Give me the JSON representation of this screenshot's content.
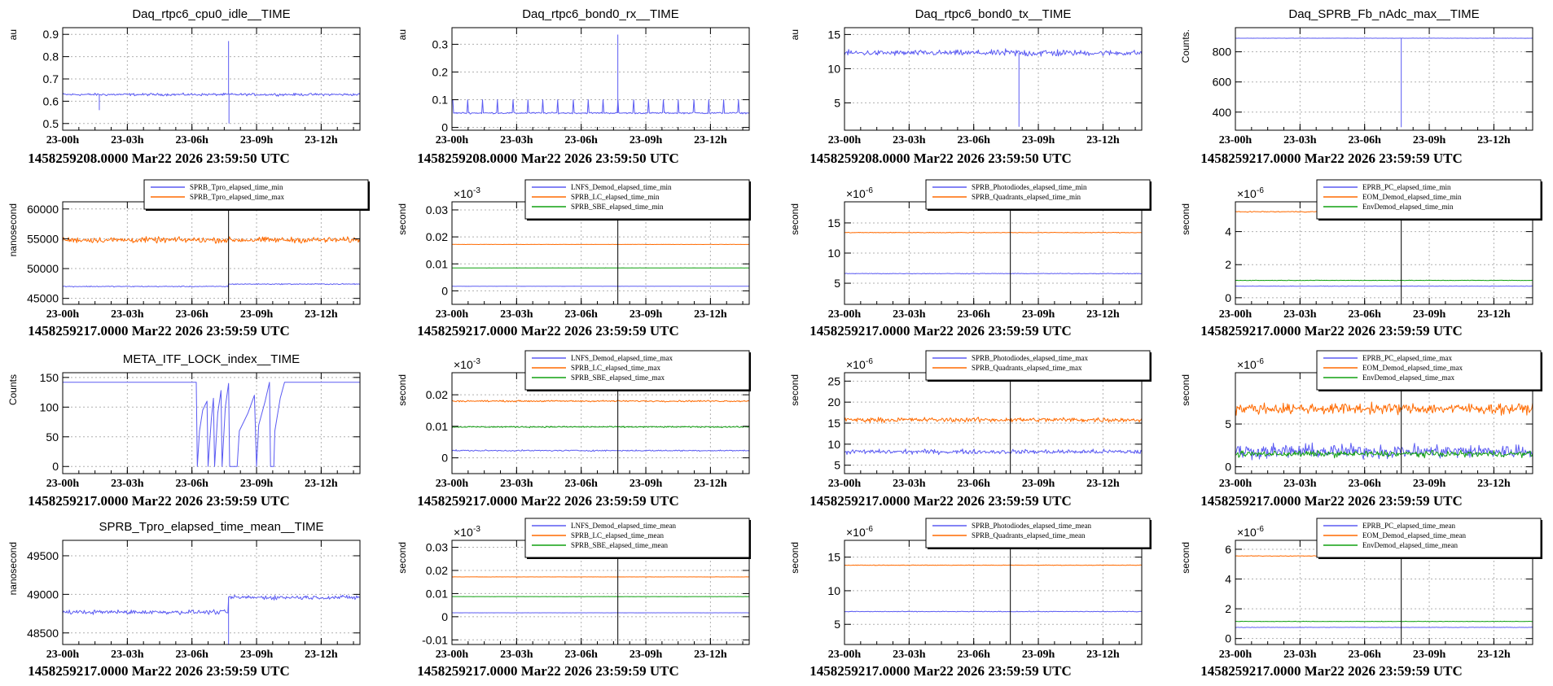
{
  "colors": {
    "blue": "#5b5bf2",
    "orange": "#ff6a00",
    "green": "#11a011",
    "black": "#000000",
    "grid": "#b0b0b0",
    "marker": "#000000"
  },
  "xticks": [
    "23-00h",
    "23-03h",
    "23-06h",
    "23-09h",
    "23-12h"
  ],
  "x_range_hours": [
    0,
    13.8
  ],
  "event_hour": 7.7,
  "chart_data": [
    {
      "id": "p11",
      "type": "line",
      "title": "Daq_rtpc6_cpu0_idle__TIME",
      "ylabel": "au",
      "yticks": [
        "0.5",
        "0.6",
        "0.7",
        "0.8",
        "0.9"
      ],
      "yvals": [
        0.5,
        0.6,
        0.7,
        0.8,
        0.9
      ],
      "ylim": [
        0.47,
        0.93
      ],
      "footer": "1458259208.0000 Mar22 2026 23:59:50 UTC",
      "series": [
        {
          "name": "cpu0_idle",
          "color": "blue",
          "base": 0.63,
          "noise": 0.008,
          "spikes": [
            [
              1.7,
              0.56
            ],
            [
              7.7,
              0.87
            ],
            [
              7.72,
              0.5
            ]
          ]
        }
      ]
    },
    {
      "id": "p12",
      "type": "line",
      "title": "Daq_rtpc6_bond0_rx__TIME",
      "ylabel": "au",
      "yticks": [
        "0",
        "0.1",
        "0.2",
        "0.3"
      ],
      "yvals": [
        0,
        0.1,
        0.2,
        0.3
      ],
      "ylim": [
        -0.01,
        0.36
      ],
      "footer": "1458259208.0000 Mar22 2026 23:59:50 UTC",
      "series": [
        {
          "name": "bond0_rx",
          "color": "blue",
          "base": 0.052,
          "noise": 0.004,
          "periodic": [
            0.7,
            0.1
          ],
          "spikes": [
            [
              7.7,
              0.335
            ]
          ]
        }
      ]
    },
    {
      "id": "p13",
      "type": "line",
      "title": "Daq_rtpc6_bond0_tx__TIME",
      "ylabel": "au",
      "yticks": [
        "5",
        "10",
        "15"
      ],
      "yvals": [
        5,
        10,
        15
      ],
      "ylim": [
        1,
        16
      ],
      "footer": "1458259208.0000 Mar22 2026 23:59:50 UTC",
      "series": [
        {
          "name": "bond0_tx",
          "color": "blue",
          "base": 12.3,
          "noise": 0.6,
          "burst": [
            7.3,
            10.2,
            1.4
          ],
          "spikes": [
            [
              8.1,
              1.5
            ]
          ]
        }
      ]
    },
    {
      "id": "p14",
      "type": "line",
      "title": "Daq_SPRB_Fb_nAdc_max__TIME",
      "ylabel": "Counts.",
      "yticks": [
        "400",
        "600",
        "800"
      ],
      "yvals": [
        400,
        600,
        800
      ],
      "ylim": [
        280,
        960
      ],
      "footer": "1458259217.0000 Mar22 2026 23:59:59 UTC",
      "series": [
        {
          "name": "nAdc_max",
          "color": "blue",
          "base": 890,
          "noise": 1,
          "spikes": [
            [
              7.7,
              300
            ]
          ]
        }
      ]
    },
    {
      "id": "p21",
      "type": "line",
      "title": "",
      "ylabel": "nanosecond",
      "yticks": [
        "45000",
        "50000",
        "55000",
        "60000"
      ],
      "yvals": [
        45000,
        50000,
        55000,
        60000
      ],
      "ylim": [
        44000,
        61200
      ],
      "footer": "1458259217.0000 Mar22 2026 23:59:59 UTC",
      "legend": [
        "SPRB_Tpro_elapsed_time_min",
        "SPRB_Tpro_elapsed_time_max"
      ],
      "series": [
        {
          "name": "SPRB_Tpro_elapsed_time_min",
          "color": "blue",
          "base": 47000,
          "step": [
            7.7,
            47400
          ],
          "noise": 120
        },
        {
          "name": "SPRB_Tpro_elapsed_time_max",
          "color": "orange",
          "base": 54800,
          "noise": 700
        }
      ]
    },
    {
      "id": "p22",
      "type": "line",
      "title": "",
      "ylabel": "second",
      "exponent": "×10",
      "exp_power": "-3",
      "yticks": [
        "0",
        "0.01",
        "0.02",
        "0.03"
      ],
      "yvals": [
        0,
        0.01,
        0.02,
        0.03
      ],
      "ylim": [
        -0.005,
        0.033
      ],
      "footer": "1458259217.0000 Mar22 2026 23:59:59 UTC",
      "legend": [
        "LNFS_Demod_elapsed_time_min",
        "SPRB_LC_elapsed_time_min",
        "SPRB_SBE_elapsed_time_min"
      ],
      "series": [
        {
          "name": "LNFS_Demod_elapsed_time_min",
          "color": "blue",
          "base": 0.0017,
          "noise": 5e-05
        },
        {
          "name": "SPRB_LC_elapsed_time_min",
          "color": "orange",
          "base": 0.0172,
          "noise": 5e-05
        },
        {
          "name": "SPRB_SBE_elapsed_time_min",
          "color": "green",
          "base": 0.0085,
          "noise": 5e-05
        }
      ]
    },
    {
      "id": "p23",
      "type": "line",
      "title": "",
      "ylabel": "second",
      "exponent": "×10",
      "exp_power": "-6",
      "yticks": [
        "5",
        "10",
        "15"
      ],
      "yvals": [
        5,
        10,
        15
      ],
      "ylim": [
        1.5,
        18.5
      ],
      "footer": "1458259217.0000 Mar22 2026 23:59:59 UTC",
      "legend": [
        "SPRB_Photodiodes_elapsed_time_min",
        "SPRB_Quadrants_elapsed_time_min"
      ],
      "series": [
        {
          "name": "SPRB_Photodiodes_elapsed_time_min",
          "color": "blue",
          "base": 6.6,
          "noise": 0.08
        },
        {
          "name": "SPRB_Quadrants_elapsed_time_min",
          "color": "orange",
          "base": 13.4,
          "noise": 0.08
        }
      ]
    },
    {
      "id": "p24",
      "type": "line",
      "title": "",
      "ylabel": "second",
      "exponent": "×10",
      "exp_power": "-6",
      "yticks": [
        "0",
        "2",
        "4"
      ],
      "yvals": [
        0,
        2,
        4
      ],
      "ylim": [
        -0.4,
        5.8
      ],
      "footer": "1458259217.0000 Mar22 2026 23:59:59 UTC",
      "legend": [
        "EPRB_PC_elapsed_time_min",
        "EOM_Demod_elapsed_time_min",
        "EnvDemod_elapsed_time_min"
      ],
      "series": [
        {
          "name": "EPRB_PC_elapsed_time_min",
          "color": "blue",
          "base": 0.7,
          "noise": 0.02
        },
        {
          "name": "EOM_Demod_elapsed_time_min",
          "color": "orange",
          "base": 5.2,
          "noise": 0.04
        },
        {
          "name": "EnvDemod_elapsed_time_min",
          "color": "green",
          "base": 1.05,
          "noise": 0.02
        }
      ]
    },
    {
      "id": "p31",
      "type": "line",
      "title": "META_ITF_LOCK_index__TIME",
      "ylabel": "Counts",
      "yticks": [
        "0",
        "50",
        "100",
        "150"
      ],
      "yvals": [
        0,
        50,
        100,
        150
      ],
      "ylim": [
        -12,
        158
      ],
      "footer": "1458259217.0000 Mar22 2026 23:59:59 UTC",
      "series": [
        {
          "name": "lock_index",
          "color": "blue",
          "mode": "lock"
        }
      ]
    },
    {
      "id": "p32",
      "type": "line",
      "title": "",
      "ylabel": "second",
      "exponent": "×10",
      "exp_power": "-3",
      "yticks": [
        "0",
        "0.01",
        "0.02"
      ],
      "yvals": [
        0,
        0.01,
        0.02
      ],
      "ylim": [
        -0.005,
        0.027
      ],
      "footer": "1458259217.0000 Mar22 2026 23:59:59 UTC",
      "legend": [
        "LNFS_Demod_elapsed_time_max",
        "SPRB_LC_elapsed_time_max",
        "SPRB_SBE_elapsed_time_max"
      ],
      "series": [
        {
          "name": "LNFS_Demod_elapsed_time_max",
          "color": "blue",
          "base": 0.0023,
          "noise": 0.0003
        },
        {
          "name": "SPRB_LC_elapsed_time_max",
          "color": "orange",
          "base": 0.018,
          "noise": 0.00035
        },
        {
          "name": "SPRB_SBE_elapsed_time_max",
          "color": "green",
          "base": 0.0098,
          "noise": 0.0003
        }
      ]
    },
    {
      "id": "p33",
      "type": "line",
      "title": "",
      "ylabel": "second",
      "exponent": "×10",
      "exp_power": "-6",
      "yticks": [
        "5",
        "10",
        "15",
        "20",
        "25"
      ],
      "yvals": [
        5,
        10,
        15,
        20,
        25
      ],
      "ylim": [
        3,
        27
      ],
      "footer": "1458259217.0000 Mar22 2026 23:59:59 UTC",
      "legend": [
        "SPRB_Photodiodes_elapsed_time_max",
        "SPRB_Quadrants_elapsed_time_max"
      ],
      "series": [
        {
          "name": "SPRB_Photodiodes_elapsed_time_max",
          "color": "blue",
          "base": 8.2,
          "noise": 0.8
        },
        {
          "name": "SPRB_Quadrants_elapsed_time_max",
          "color": "orange",
          "base": 15.8,
          "noise": 0.8
        }
      ]
    },
    {
      "id": "p34",
      "type": "line",
      "title": "",
      "ylabel": "second",
      "exponent": "×10",
      "exp_power": "-6",
      "yticks": [
        "0",
        "5"
      ],
      "yvals": [
        0,
        5
      ],
      "ylim": [
        -0.8,
        11
      ],
      "footer": "1458259217.0000 Mar22 2026 23:59:59 UTC",
      "legend": [
        "EPRB_PC_elapsed_time_max",
        "EOM_Demod_elapsed_time_max",
        "EnvDemod_elapsed_time_max"
      ],
      "series": [
        {
          "name": "EPRB_PC_elapsed_time_max",
          "color": "blue",
          "base": 1.8,
          "noise": 1.2
        },
        {
          "name": "EOM_Demod_elapsed_time_max",
          "color": "orange",
          "base": 6.8,
          "noise": 0.9
        },
        {
          "name": "EnvDemod_elapsed_time_max",
          "color": "green",
          "base": 1.5,
          "noise": 0.5
        }
      ]
    },
    {
      "id": "p41",
      "type": "line",
      "title": "SPRB_Tpro_elapsed_time_mean__TIME",
      "ylabel": "nanosecond",
      "yticks": [
        "48500",
        "49000",
        "49500"
      ],
      "yvals": [
        48500,
        49000,
        49500
      ],
      "ylim": [
        48350,
        49700
      ],
      "footer": "1458259217.0000 Mar22 2026 23:59:59 UTC",
      "series": [
        {
          "name": "SPRB_Tpro_elapsed_time_mean",
          "color": "blue",
          "base": 48770,
          "step": [
            7.7,
            48960
          ],
          "noise": 40,
          "spikes": [
            [
              7.7,
              48350
            ]
          ]
        }
      ]
    },
    {
      "id": "p42",
      "type": "line",
      "title": "",
      "ylabel": "second",
      "exponent": "×10",
      "exp_power": "-3",
      "yticks": [
        "-0.01",
        "0",
        "0.01",
        "0.02",
        "0.03"
      ],
      "yvals": [
        -0.01,
        0,
        0.01,
        0.02,
        0.03
      ],
      "ylim": [
        -0.012,
        0.033
      ],
      "footer": "1458259217.0000 Mar22 2026 23:59:59 UTC",
      "legend": [
        "LNFS_Demod_elapsed_time_mean",
        "SPRB_LC_elapsed_time_mean",
        "SPRB_SBE_elapsed_time_mean"
      ],
      "series": [
        {
          "name": "LNFS_Demod_elapsed_time_mean",
          "color": "blue",
          "base": 0.0017,
          "noise": 4e-05
        },
        {
          "name": "SPRB_LC_elapsed_time_mean",
          "color": "orange",
          "base": 0.0172,
          "noise": 5e-05
        },
        {
          "name": "SPRB_SBE_elapsed_time_mean",
          "color": "green",
          "base": 0.0087,
          "noise": 4e-05
        }
      ]
    },
    {
      "id": "p43",
      "type": "line",
      "title": "",
      "ylabel": "second",
      "exponent": "×10",
      "exp_power": "-6",
      "yticks": [
        "5",
        "10",
        "15"
      ],
      "yvals": [
        5,
        10,
        15
      ],
      "ylim": [
        2,
        17.5
      ],
      "footer": "1458259217.0000 Mar22 2026 23:59:59 UTC",
      "legend": [
        "SPRB_Photodiodes_elapsed_time_mean",
        "SPRB_Quadrants_elapsed_time_mean"
      ],
      "series": [
        {
          "name": "SPRB_Photodiodes_elapsed_time_mean",
          "color": "blue",
          "base": 6.9,
          "noise": 0.08
        },
        {
          "name": "SPRB_Quadrants_elapsed_time_mean",
          "color": "orange",
          "base": 13.8,
          "noise": 0.06
        }
      ]
    },
    {
      "id": "p44",
      "type": "line",
      "title": "",
      "ylabel": "second",
      "exponent": "×10",
      "exp_power": "-6",
      "yticks": [
        "0",
        "2",
        "4",
        "6"
      ],
      "yvals": [
        0,
        2,
        4,
        6
      ],
      "ylim": [
        -0.4,
        6.6
      ],
      "footer": "1458259217.0000 Mar22 2026 23:59:59 UTC",
      "legend": [
        "EPRB_PC_elapsed_time_mean",
        "EOM_Demod_elapsed_time_mean",
        "EnvDemod_elapsed_time_mean"
      ],
      "series": [
        {
          "name": "EPRB_PC_elapsed_time_mean",
          "color": "blue",
          "base": 0.75,
          "noise": 0.02
        },
        {
          "name": "EOM_Demod_elapsed_time_mean",
          "color": "orange",
          "base": 5.55,
          "noise": 0.03
        },
        {
          "name": "EnvDemod_elapsed_time_mean",
          "color": "green",
          "base": 1.15,
          "noise": 0.02
        }
      ]
    }
  ]
}
